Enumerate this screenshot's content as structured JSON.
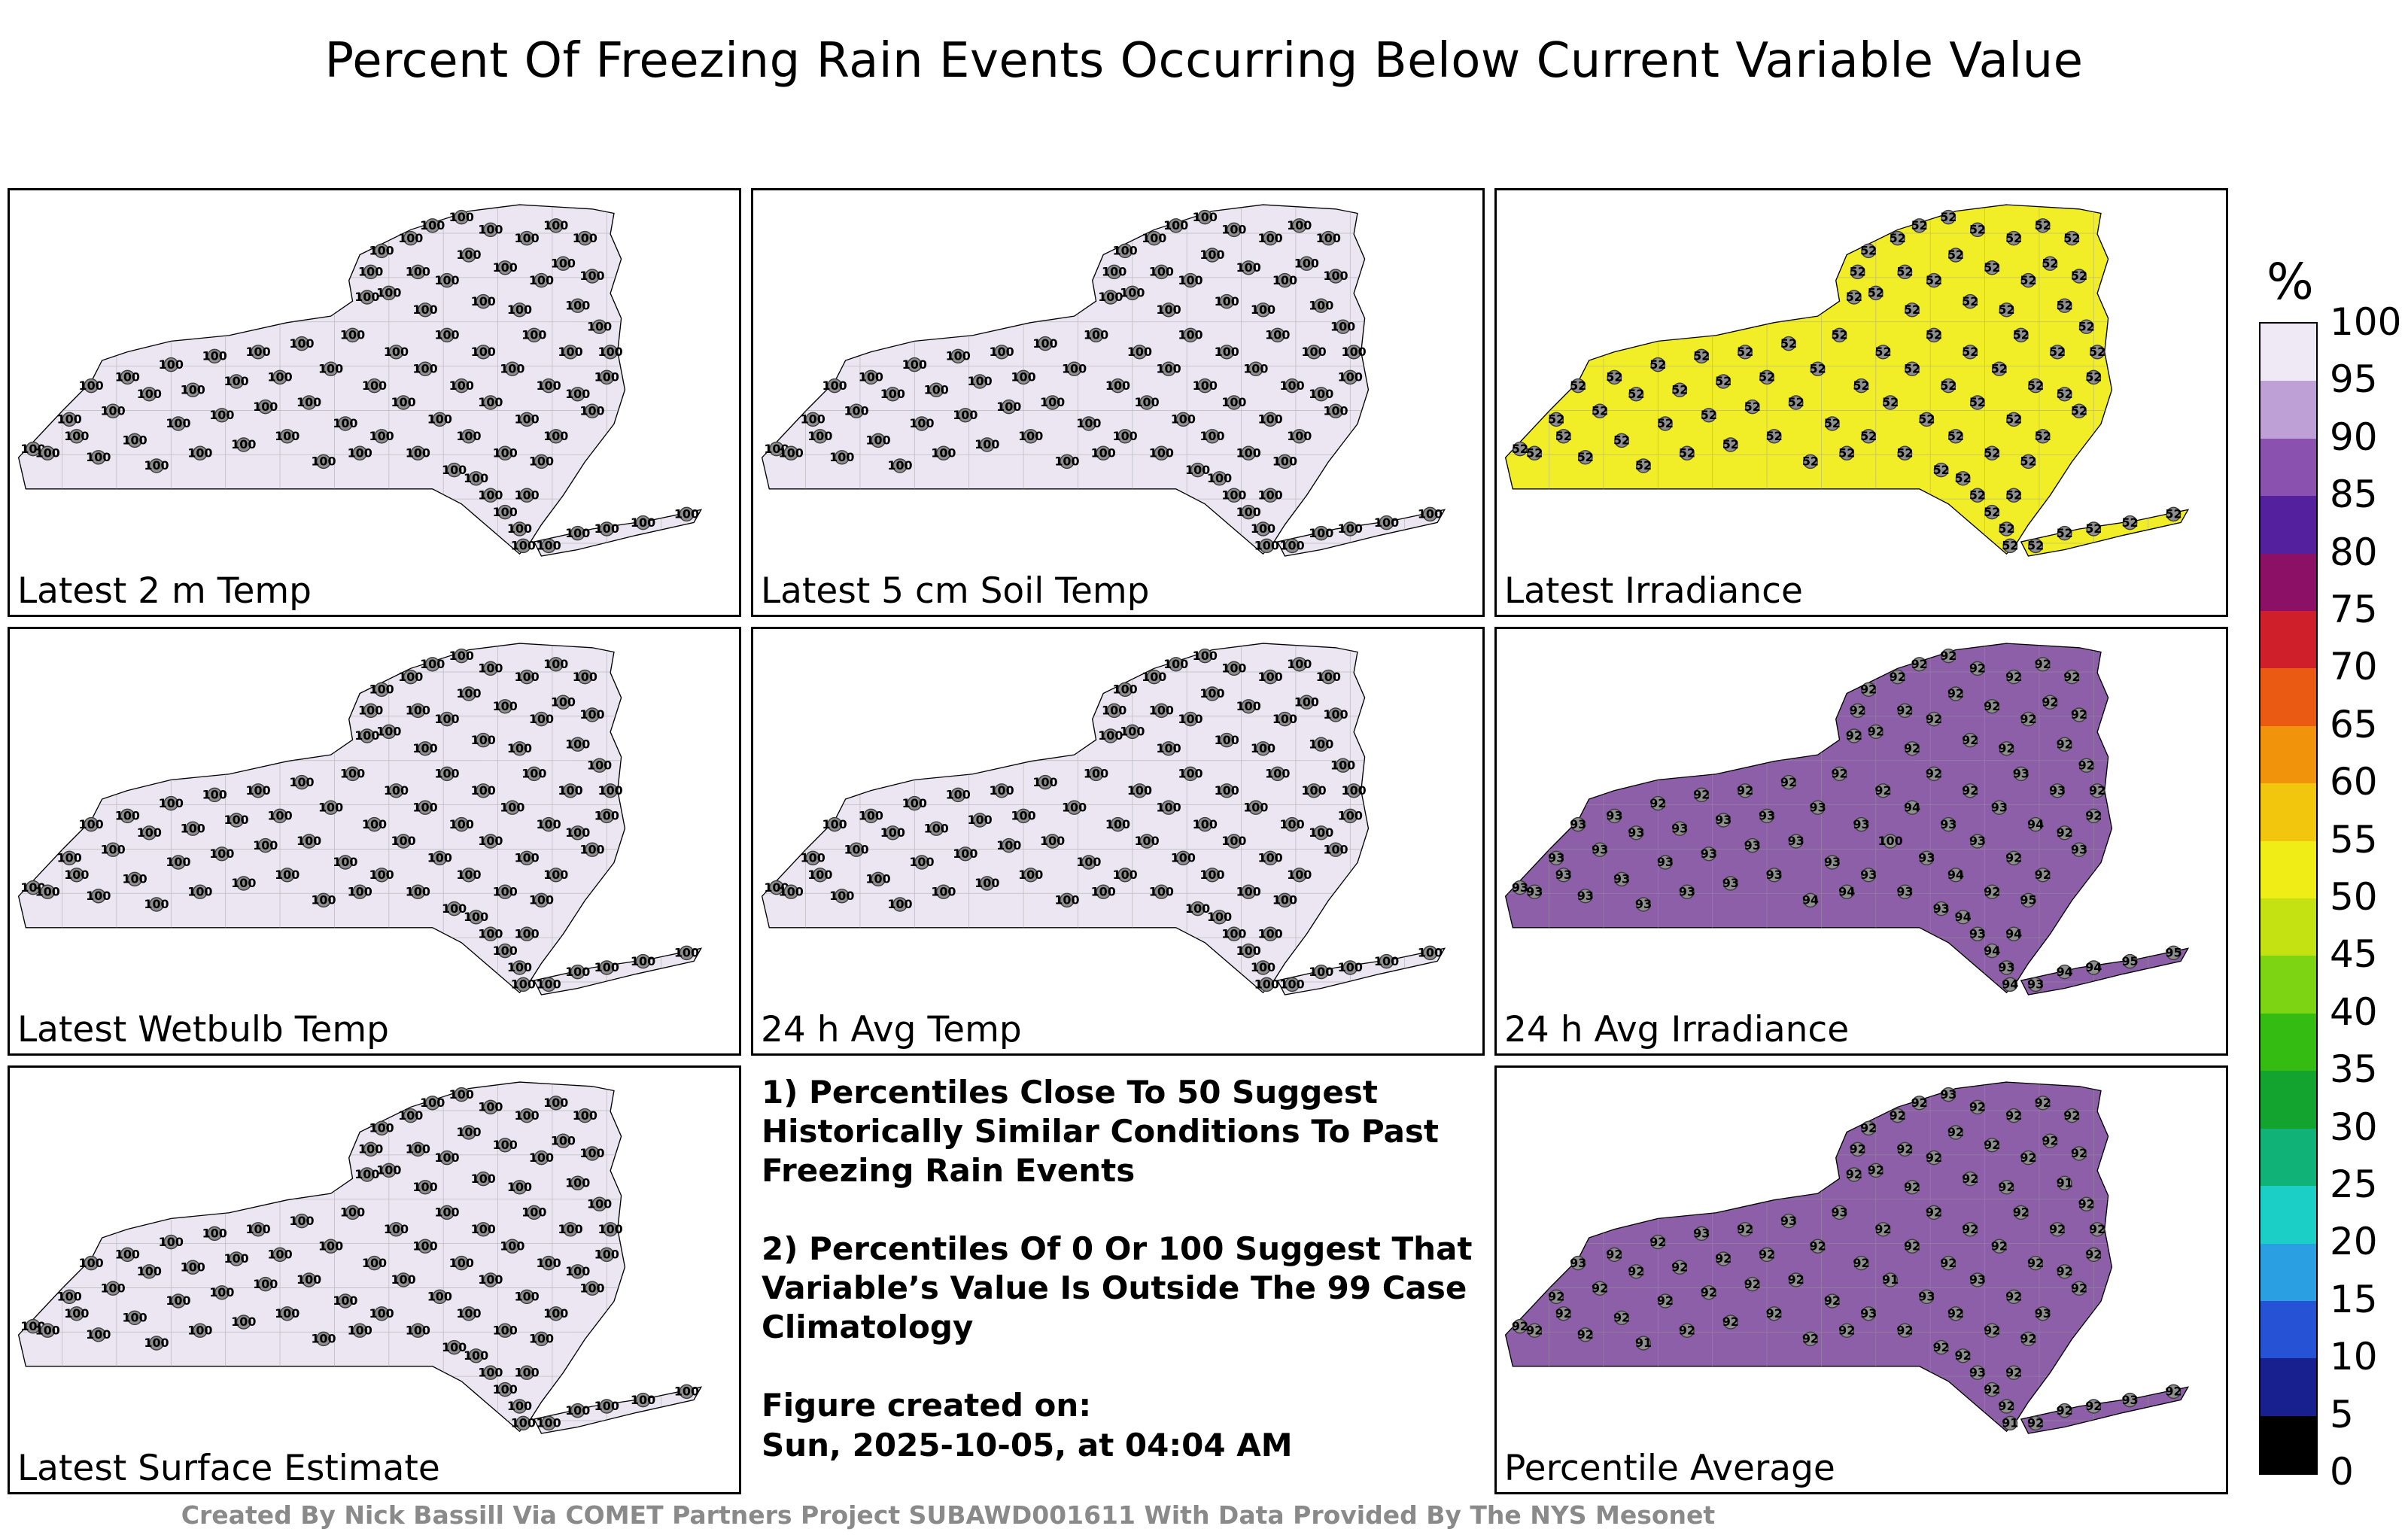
{
  "title": "Percent Of Freezing Rain Events Occurring Below Current Variable Value",
  "footer": "Created By Nick Bassill Via COMET Partners Project SUBAWD001611 With Data Provided By The NYS Mesonet",
  "notes": {
    "note1": "1) Percentiles Close To 50 Suggest Historically Similar Conditions To Past Freezing Rain Events",
    "note2": "2) Percentiles Of 0 Or 100 Suggest That Variable’s Value Is Outside The 99 Case Climatology",
    "created_label": "Figure created on:",
    "created_value": "Sun, 2025-10-05, at 04:04 AM"
  },
  "colorbar": {
    "unit_label": "%",
    "ticks": [
      100,
      95,
      90,
      85,
      80,
      75,
      70,
      65,
      60,
      55,
      50,
      45,
      40,
      35,
      30,
      25,
      20,
      15,
      10,
      5,
      0
    ],
    "segment_colors": [
      "#efe9f5",
      "#bfa0d6",
      "#8a52ae",
      "#55209e",
      "#8c1166",
      "#cf1f2a",
      "#ea5a12",
      "#f2930c",
      "#f2c60c",
      "#f0ec16",
      "#c4e212",
      "#7cd412",
      "#34bc12",
      "#12a42e",
      "#10b278",
      "#1ccfc6",
      "#2aa0e2",
      "#2653d6",
      "#17208e",
      "#000000"
    ]
  },
  "station_marker": {
    "fill": "#8f8f8f",
    "stroke": "#3c3c3c"
  },
  "stations": [
    [
      3,
      61
    ],
    [
      5,
      62
    ],
    [
      8,
      54
    ],
    [
      9,
      58
    ],
    [
      11,
      46
    ],
    [
      12,
      63
    ],
    [
      14,
      52
    ],
    [
      16,
      44
    ],
    [
      17,
      59
    ],
    [
      19,
      48
    ],
    [
      20,
      65
    ],
    [
      22,
      41
    ],
    [
      23,
      55
    ],
    [
      25,
      47
    ],
    [
      26,
      62
    ],
    [
      28,
      39
    ],
    [
      29,
      53
    ],
    [
      31,
      45
    ],
    [
      32,
      60
    ],
    [
      34,
      38
    ],
    [
      35,
      51
    ],
    [
      37,
      44
    ],
    [
      38,
      58
    ],
    [
      40,
      36
    ],
    [
      41,
      50
    ],
    [
      43,
      64
    ],
    [
      44,
      42
    ],
    [
      46,
      55
    ],
    [
      47,
      34
    ],
    [
      48,
      62
    ],
    [
      49,
      25
    ],
    [
      49.5,
      19
    ],
    [
      51,
      14
    ],
    [
      52,
      24
    ],
    [
      55,
      11
    ],
    [
      56,
      19
    ],
    [
      57,
      28
    ],
    [
      58,
      8
    ],
    [
      60,
      21
    ],
    [
      62,
      6
    ],
    [
      63,
      15
    ],
    [
      65,
      26
    ],
    [
      66,
      9
    ],
    [
      68,
      18
    ],
    [
      70,
      28
    ],
    [
      71,
      11
    ],
    [
      73,
      21
    ],
    [
      75,
      8
    ],
    [
      76,
      17
    ],
    [
      78,
      27
    ],
    [
      79,
      11
    ],
    [
      80,
      20
    ],
    [
      81,
      32
    ],
    [
      82,
      44
    ],
    [
      80,
      52
    ],
    [
      82.5,
      38
    ],
    [
      50,
      46
    ],
    [
      51,
      58
    ],
    [
      53,
      38
    ],
    [
      54,
      50
    ],
    [
      56,
      62
    ],
    [
      57,
      42
    ],
    [
      59,
      54
    ],
    [
      60,
      34
    ],
    [
      62,
      46
    ],
    [
      63,
      58
    ],
    [
      65,
      38
    ],
    [
      66,
      50
    ],
    [
      68,
      62
    ],
    [
      69,
      42
    ],
    [
      71,
      54
    ],
    [
      72,
      34
    ],
    [
      74,
      46
    ],
    [
      75,
      58
    ],
    [
      77,
      38
    ],
    [
      78,
      48
    ],
    [
      61,
      66
    ],
    [
      64,
      68
    ],
    [
      66,
      72
    ],
    [
      68,
      76
    ],
    [
      70,
      80
    ],
    [
      71,
      72
    ],
    [
      73,
      64
    ],
    [
      70.5,
      84
    ],
    [
      74,
      84
    ],
    [
      78,
      81
    ],
    [
      82,
      80
    ],
    [
      87,
      78.5
    ],
    [
      93,
      76.5
    ]
  ],
  "panels": [
    {
      "id": "latest-2m-temp",
      "label": "Latest 2 m Temp",
      "fill": "#ebe6f2",
      "uniform_value": 100
    },
    {
      "id": "latest-5cm-soil-temp",
      "label": "Latest 5 cm Soil Temp",
      "fill": "#ebe6f2",
      "uniform_value": 100
    },
    {
      "id": "latest-irradiance",
      "label": "Latest Irradiance",
      "fill": "#f1ee28",
      "uniform_value": 52
    },
    {
      "id": "latest-wetbulb-temp",
      "label": "Latest Wetbulb Temp",
      "fill": "#ebe6f2",
      "uniform_value": 100
    },
    {
      "id": "24h-avg-temp",
      "label": "24 h Avg Temp",
      "fill": "#ebe6f2",
      "uniform_value": 100
    },
    {
      "id": "24h-avg-irradiance",
      "label": "24 h Avg Irradiance",
      "fill": "#8d5fa8",
      "values": [
        93,
        93,
        93,
        93,
        93,
        93,
        93,
        93,
        93,
        93,
        93,
        92,
        93,
        93,
        93,
        92,
        93,
        93,
        93,
        92,
        93,
        93,
        93,
        92,
        93,
        94,
        93,
        93,
        92,
        94,
        92,
        92,
        92,
        92,
        92,
        92,
        92,
        92,
        92,
        92,
        92,
        92,
        92,
        92,
        92,
        92,
        92,
        92,
        92,
        92,
        92,
        92,
        92,
        92,
        93,
        92,
        93,
        93,
        92,
        100,
        93,
        94,
        93,
        92,
        93,
        94,
        92,
        93,
        92,
        93,
        92,
        93,
        94,
        92,
        93,
        92,
        93,
        94,
        93,
        94,
        93,
        94,
        95,
        94,
        93,
        94,
        94,
        95,
        95
      ]
    },
    {
      "id": "latest-surface-estimate",
      "label": "Latest Surface Estimate",
      "fill": "#ebe6f2",
      "uniform_value": 100
    },
    {
      "id": "percentile-average",
      "label": "Percentile Average",
      "fill": "#8d5fa8",
      "values": [
        92,
        92,
        92,
        92,
        93,
        92,
        92,
        92,
        92,
        92,
        91,
        92,
        92,
        92,
        92,
        93,
        92,
        92,
        92,
        92,
        92,
        92,
        92,
        93,
        92,
        92,
        92,
        92,
        93,
        92,
        92,
        92,
        92,
        92,
        92,
        92,
        92,
        92,
        92,
        93,
        92,
        92,
        92,
        92,
        92,
        92,
        92,
        92,
        92,
        91,
        92,
        92,
        92,
        92,
        92,
        92,
        92,
        93,
        92,
        91,
        92,
        92,
        93,
        92,
        92,
        92,
        92,
        93,
        92,
        92,
        92,
        92,
        92,
        93,
        92,
        92,
        92,
        92,
        93,
        92,
        92,
        92,
        92,
        91,
        92,
        92,
        92,
        93,
        92
      ]
    }
  ]
}
